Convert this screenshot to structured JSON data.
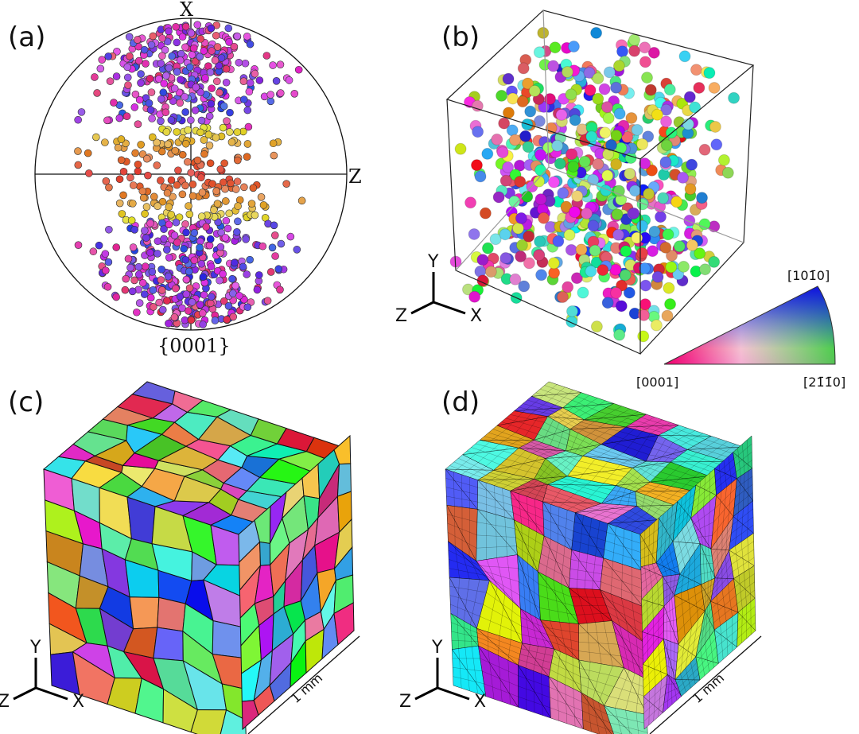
{
  "panels": [
    {
      "label": "(a)",
      "pole_top": "X",
      "pole_right": "Z",
      "pole_bottom": "{0001}"
    },
    {
      "label": "(b)",
      "axes": [
        "Y",
        "Z",
        "X"
      ],
      "ipf": {
        "top": "[101̄0]",
        "left": "[0001]",
        "right": "[21̄1̄0]"
      }
    },
    {
      "label": "(c)",
      "axes": [
        "Y",
        "Z",
        "X"
      ],
      "scale": "1 mm"
    },
    {
      "label": "(d)",
      "axes": [
        "Y",
        "Z",
        "X"
      ],
      "scale": "1 mm"
    }
  ]
}
